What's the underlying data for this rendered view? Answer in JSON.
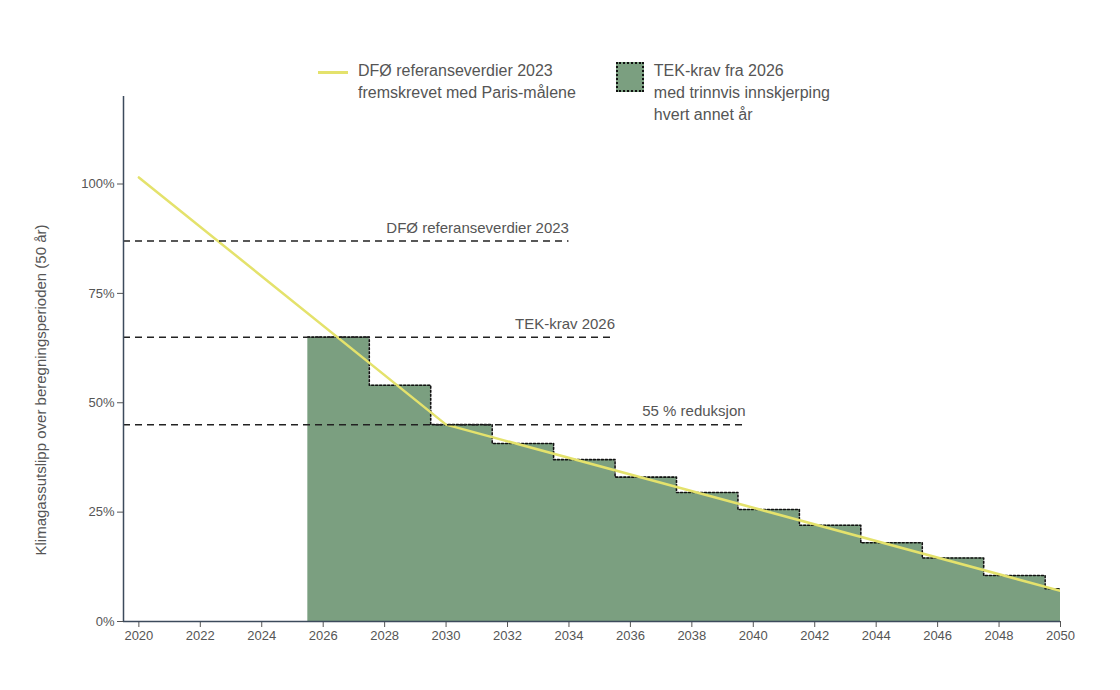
{
  "chart_data": {
    "type": "line",
    "y_label": "Klimagassutslipp over beregningsperioden (50 år)",
    "xlim": [
      2019.5,
      2050
    ],
    "xticks": [
      2020,
      2022,
      2024,
      2026,
      2028,
      2030,
      2032,
      2034,
      2036,
      2038,
      2040,
      2042,
      2044,
      2046,
      2048,
      2050
    ],
    "ylim": [
      0,
      120
    ],
    "yticks": [
      {
        "value": 0,
        "label": "0%"
      },
      {
        "value": 25,
        "label": "25%"
      },
      {
        "value": 50,
        "label": "50%"
      },
      {
        "value": 75,
        "label": "75%"
      },
      {
        "value": 100,
        "label": "100%"
      }
    ],
    "grid": false,
    "legend": "top",
    "series": [
      {
        "name": "DFØ referanseverdier 2023\nfremskrevet med Paris-målene",
        "type": "line",
        "color": "#e4e26c",
        "x": [
          2020,
          2030,
          2040,
          2050
        ],
        "values": [
          101.5,
          45,
          26,
          7
        ]
      },
      {
        "name": "TEK-krav fra 2026\nmed trinnvis innskjerping\nhvert annet år",
        "type": "step_area",
        "color": "#7b9f80",
        "line_style": "dotted",
        "x": [
          2025.5,
          2027.5,
          2029.5,
          2031.5,
          2033.5,
          2035.5,
          2037.5,
          2039.5,
          2041.5,
          2043.5,
          2045.5,
          2047.5,
          2049.5,
          2050
        ],
        "values": [
          65,
          54,
          45,
          40.7,
          37,
          33,
          29.5,
          25.6,
          22,
          18,
          14.5,
          10.5,
          7.5,
          7.5
        ]
      }
    ],
    "reference_lines": [
      {
        "label": "DFØ referanseverdier 2023",
        "y": 87,
        "x": [
          2019.5,
          2034
        ],
        "line_style": "dashed"
      },
      {
        "label": "TEK-krav 2026",
        "y": 65,
        "x": [
          2019.5,
          2035.5
        ],
        "line_style": "dashed"
      },
      {
        "label": "55 % reduksjon",
        "y": 45,
        "x": [
          2019.5,
          2039.75
        ],
        "line_style": "dashed"
      }
    ]
  }
}
